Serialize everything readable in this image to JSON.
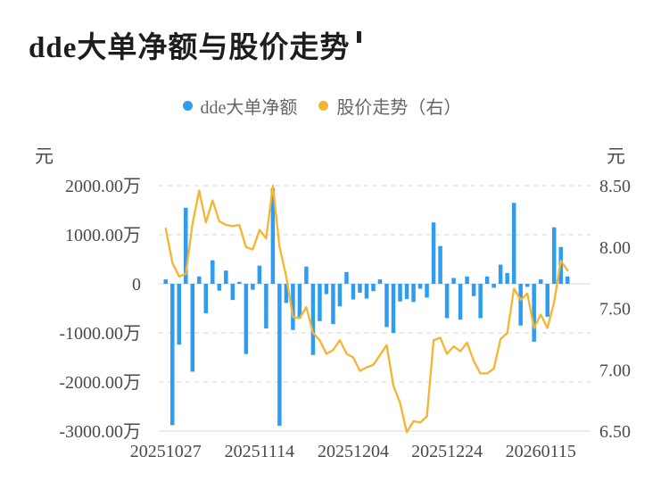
{
  "header": {
    "title": "dde大单净额与股价走势"
  },
  "chart_data": {
    "type": "combo",
    "title": "dde大单净额与股价走势",
    "x_tick_labels": [
      "20251027",
      "20251114",
      "20251204",
      "20251224",
      "20260115"
    ],
    "x_tick_indices": [
      0,
      14,
      28,
      42,
      56
    ],
    "left_axis": {
      "unit": "元",
      "ticks": [
        "2000.00万",
        "1000.00万",
        "0",
        "-1000.00万",
        "-2000.00万",
        "-3000.00万"
      ],
      "min_wan": -3000,
      "max_wan": 2000,
      "grid": "dashed"
    },
    "right_axis": {
      "unit": "元",
      "ticks": [
        "8.50",
        "8.00",
        "7.50",
        "7.00",
        "6.50"
      ],
      "min": 6.5,
      "max": 8.5
    },
    "series": [
      {
        "name": "dde大单净额",
        "type": "bar",
        "axis": "left",
        "unit": "万元",
        "color": "#2E9CF0",
        "values": [
          90,
          -2880,
          -1240,
          1550,
          -1790,
          150,
          -600,
          480,
          -140,
          270,
          -330,
          40,
          -1430,
          -120,
          370,
          -910,
          1950,
          -2890,
          -390,
          -940,
          -700,
          350,
          -1450,
          -760,
          -210,
          -820,
          -460,
          240,
          -320,
          -180,
          -300,
          -150,
          90,
          -880,
          -1000,
          -360,
          -310,
          -370,
          -100,
          -280,
          1250,
          770,
          -700,
          120,
          -730,
          150,
          -250,
          -700,
          150,
          -80,
          390,
          220,
          1650,
          -850,
          -60,
          -1180,
          90,
          -670,
          1150,
          750,
          150
        ]
      },
      {
        "name": "股价走势（右）",
        "type": "line",
        "axis": "right",
        "unit": "元",
        "color": "#F8B42E",
        "values": [
          8.15,
          7.87,
          7.76,
          7.78,
          8.19,
          8.46,
          8.2,
          8.38,
          8.21,
          8.18,
          8.17,
          8.18,
          8.0,
          7.98,
          8.14,
          8.07,
          8.5,
          8.0,
          7.76,
          7.43,
          7.42,
          7.51,
          7.3,
          7.24,
          7.13,
          7.16,
          7.24,
          7.13,
          7.1,
          6.99,
          7.02,
          7.04,
          7.12,
          7.2,
          6.87,
          6.73,
          6.49,
          6.58,
          6.57,
          6.62,
          7.24,
          7.26,
          7.13,
          7.19,
          7.15,
          7.22,
          7.07,
          6.97,
          6.97,
          7.01,
          7.25,
          7.3,
          7.66,
          7.57,
          7.62,
          7.34,
          7.45,
          7.34,
          7.55,
          7.89,
          7.81
        ]
      }
    ],
    "colors": {
      "bar": "#2E9CF0",
      "line": "#F8B42E",
      "grid": "#e3e3e3",
      "axis_text": "#4a4a4a",
      "legend_text": "#666666",
      "title_text": "#1d1d1d"
    }
  }
}
